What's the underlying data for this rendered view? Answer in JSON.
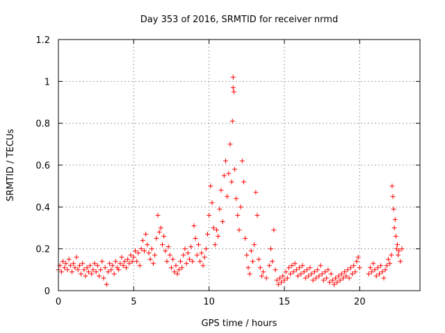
{
  "chart_data": {
    "type": "scatter",
    "title": "Day 353 of 2016, SRMTID for receiver nrmd",
    "xlabel": "GPS time / hours",
    "ylabel": "SRMTID / TECUs",
    "xlim": [
      0,
      24
    ],
    "ylim": [
      0,
      1.2
    ],
    "grid": true,
    "marker": "+",
    "marker_color": "#ff0000",
    "x_ticks": [
      0,
      5,
      10,
      15,
      20
    ],
    "x_tick_labels": [
      "0",
      "5",
      "10",
      "15",
      "20"
    ],
    "y_ticks": [
      0,
      0.2,
      0.4,
      0.6,
      0.8,
      1.0,
      1.2
    ],
    "y_tick_labels": [
      "0",
      "0.2",
      "0.4",
      "0.6",
      "0.8",
      "1",
      "1.2"
    ],
    "series": [
      {
        "name": "SRMTID",
        "points": [
          [
            0.0,
            0.1
          ],
          [
            0.1,
            0.12
          ],
          [
            0.2,
            0.09
          ],
          [
            0.3,
            0.14
          ],
          [
            0.4,
            0.11
          ],
          [
            0.5,
            0.13
          ],
          [
            0.6,
            0.1
          ],
          [
            0.7,
            0.15
          ],
          [
            0.8,
            0.12
          ],
          [
            0.9,
            0.09
          ],
          [
            1.0,
            0.13
          ],
          [
            1.1,
            0.11
          ],
          [
            1.2,
            0.16
          ],
          [
            1.3,
            0.1
          ],
          [
            1.4,
            0.12
          ],
          [
            1.5,
            0.08
          ],
          [
            1.6,
            0.13
          ],
          [
            1.7,
            0.1
          ],
          [
            1.8,
            0.07
          ],
          [
            1.9,
            0.11
          ],
          [
            2.0,
            0.09
          ],
          [
            2.1,
            0.12
          ],
          [
            2.2,
            0.08
          ],
          [
            2.3,
            0.1
          ],
          [
            2.4,
            0.13
          ],
          [
            2.5,
            0.09
          ],
          [
            2.6,
            0.12
          ],
          [
            2.7,
            0.07
          ],
          [
            2.8,
            0.1
          ],
          [
            2.9,
            0.14
          ],
          [
            3.0,
            0.06
          ],
          [
            3.1,
            0.11
          ],
          [
            3.2,
            0.03
          ],
          [
            3.3,
            0.09
          ],
          [
            3.4,
            0.13
          ],
          [
            3.5,
            0.1
          ],
          [
            3.6,
            0.12
          ],
          [
            3.7,
            0.08
          ],
          [
            3.8,
            0.14
          ],
          [
            3.9,
            0.11
          ],
          [
            4.0,
            0.1
          ],
          [
            4.1,
            0.13
          ],
          [
            4.2,
            0.16
          ],
          [
            4.3,
            0.12
          ],
          [
            4.4,
            0.14
          ],
          [
            4.5,
            0.11
          ],
          [
            4.6,
            0.15
          ],
          [
            4.7,
            0.13
          ],
          [
            4.8,
            0.17
          ],
          [
            4.9,
            0.14
          ],
          [
            5.0,
            0.16
          ],
          [
            5.1,
            0.19
          ],
          [
            5.2,
            0.14
          ],
          [
            5.3,
            0.18
          ],
          [
            5.4,
            0.12
          ],
          [
            5.5,
            0.2
          ],
          [
            5.6,
            0.24
          ],
          [
            5.7,
            0.19
          ],
          [
            5.8,
            0.27
          ],
          [
            5.9,
            0.22
          ],
          [
            6.0,
            0.18
          ],
          [
            6.1,
            0.15
          ],
          [
            6.2,
            0.2
          ],
          [
            6.3,
            0.13
          ],
          [
            6.4,
            0.17
          ],
          [
            6.5,
            0.25
          ],
          [
            6.6,
            0.36
          ],
          [
            6.7,
            0.28
          ],
          [
            6.8,
            0.3
          ],
          [
            6.9,
            0.22
          ],
          [
            7.0,
            0.26
          ],
          [
            7.1,
            0.19
          ],
          [
            7.2,
            0.14
          ],
          [
            7.3,
            0.21
          ],
          [
            7.4,
            0.17
          ],
          [
            7.5,
            0.11
          ],
          [
            7.6,
            0.15
          ],
          [
            7.7,
            0.09
          ],
          [
            7.8,
            0.12
          ],
          [
            7.9,
            0.08
          ],
          [
            8.0,
            0.1
          ],
          [
            8.1,
            0.14
          ],
          [
            8.2,
            0.11
          ],
          [
            8.3,
            0.17
          ],
          [
            8.4,
            0.2
          ],
          [
            8.5,
            0.13
          ],
          [
            8.6,
            0.18
          ],
          [
            8.7,
            0.15
          ],
          [
            8.8,
            0.21
          ],
          [
            8.9,
            0.14
          ],
          [
            9.0,
            0.31
          ],
          [
            9.1,
            0.25
          ],
          [
            9.2,
            0.17
          ],
          [
            9.3,
            0.22
          ],
          [
            9.4,
            0.14
          ],
          [
            9.5,
            0.18
          ],
          [
            9.6,
            0.12
          ],
          [
            9.7,
            0.16
          ],
          [
            9.8,
            0.2
          ],
          [
            9.9,
            0.27
          ],
          [
            10.0,
            0.36
          ],
          [
            10.1,
            0.5
          ],
          [
            10.2,
            0.42
          ],
          [
            10.3,
            0.3
          ],
          [
            10.4,
            0.22
          ],
          [
            10.5,
            0.29
          ],
          [
            10.6,
            0.26
          ],
          [
            10.7,
            0.39
          ],
          [
            10.8,
            0.48
          ],
          [
            10.9,
            0.33
          ],
          [
            11.0,
            0.55
          ],
          [
            11.1,
            0.62
          ],
          [
            11.2,
            0.45
          ],
          [
            11.3,
            0.56
          ],
          [
            11.4,
            0.7
          ],
          [
            11.5,
            0.52
          ],
          [
            11.55,
            0.81
          ],
          [
            11.6,
            0.97
          ],
          [
            11.6,
            1.02
          ],
          [
            11.65,
            0.95
          ],
          [
            11.7,
            0.58
          ],
          [
            11.8,
            0.44
          ],
          [
            11.9,
            0.36
          ],
          [
            12.0,
            0.29
          ],
          [
            12.1,
            0.4
          ],
          [
            12.2,
            0.62
          ],
          [
            12.3,
            0.52
          ],
          [
            12.4,
            0.25
          ],
          [
            12.5,
            0.17
          ],
          [
            12.6,
            0.11
          ],
          [
            12.7,
            0.08
          ],
          [
            12.8,
            0.19
          ],
          [
            12.9,
            0.14
          ],
          [
            13.0,
            0.22
          ],
          [
            13.1,
            0.47
          ],
          [
            13.2,
            0.36
          ],
          [
            13.3,
            0.15
          ],
          [
            13.4,
            0.11
          ],
          [
            13.5,
            0.07
          ],
          [
            13.6,
            0.09
          ],
          [
            13.8,
            0.06
          ],
          [
            14.0,
            0.12
          ],
          [
            14.1,
            0.2
          ],
          [
            14.2,
            0.14
          ],
          [
            14.3,
            0.29
          ],
          [
            14.4,
            0.1
          ],
          [
            14.5,
            0.05
          ],
          [
            14.6,
            0.03
          ],
          [
            14.7,
            0.06
          ],
          [
            14.8,
            0.04
          ],
          [
            14.9,
            0.07
          ],
          [
            15.0,
            0.05
          ],
          [
            15.1,
            0.09
          ],
          [
            15.2,
            0.06
          ],
          [
            15.3,
            0.11
          ],
          [
            15.4,
            0.08
          ],
          [
            15.5,
            0.12
          ],
          [
            15.6,
            0.09
          ],
          [
            15.7,
            0.13
          ],
          [
            15.8,
            0.1
          ],
          [
            15.9,
            0.07
          ],
          [
            16.0,
            0.11
          ],
          [
            16.1,
            0.08
          ],
          [
            16.2,
            0.12
          ],
          [
            16.3,
            0.09
          ],
          [
            16.4,
            0.06
          ],
          [
            16.5,
            0.1
          ],
          [
            16.6,
            0.07
          ],
          [
            16.7,
            0.11
          ],
          [
            16.8,
            0.08
          ],
          [
            16.9,
            0.05
          ],
          [
            17.0,
            0.09
          ],
          [
            17.1,
            0.06
          ],
          [
            17.2,
            0.1
          ],
          [
            17.3,
            0.07
          ],
          [
            17.4,
            0.12
          ],
          [
            17.5,
            0.08
          ],
          [
            17.6,
            0.05
          ],
          [
            17.7,
            0.09
          ],
          [
            17.8,
            0.06
          ],
          [
            17.9,
            0.1
          ],
          [
            18.0,
            0.04
          ],
          [
            18.1,
            0.08
          ],
          [
            18.2,
            0.05
          ],
          [
            18.3,
            0.03
          ],
          [
            18.4,
            0.06
          ],
          [
            18.5,
            0.04
          ],
          [
            18.6,
            0.07
          ],
          [
            18.7,
            0.05
          ],
          [
            18.8,
            0.08
          ],
          [
            18.9,
            0.06
          ],
          [
            19.0,
            0.09
          ],
          [
            19.1,
            0.07
          ],
          [
            19.2,
            0.1
          ],
          [
            19.3,
            0.06
          ],
          [
            19.4,
            0.11
          ],
          [
            19.5,
            0.08
          ],
          [
            19.6,
            0.12
          ],
          [
            19.7,
            0.09
          ],
          [
            19.8,
            0.14
          ],
          [
            19.9,
            0.16
          ],
          [
            20.0,
            0.11
          ],
          [
            20.6,
            0.08
          ],
          [
            20.7,
            0.11
          ],
          [
            20.8,
            0.09
          ],
          [
            20.9,
            0.13
          ],
          [
            21.0,
            0.1
          ],
          [
            21.1,
            0.07
          ],
          [
            21.2,
            0.11
          ],
          [
            21.3,
            0.08
          ],
          [
            21.4,
            0.12
          ],
          [
            21.5,
            0.09
          ],
          [
            21.6,
            0.06
          ],
          [
            21.7,
            0.1
          ],
          [
            21.8,
            0.12
          ],
          [
            21.9,
            0.15
          ],
          [
            22.0,
            0.13
          ],
          [
            22.1,
            0.17
          ],
          [
            22.15,
            0.5
          ],
          [
            22.2,
            0.45
          ],
          [
            22.25,
            0.39
          ],
          [
            22.3,
            0.3
          ],
          [
            22.35,
            0.34
          ],
          [
            22.4,
            0.26
          ],
          [
            22.45,
            0.2
          ],
          [
            22.5,
            0.22
          ],
          [
            22.55,
            0.17
          ],
          [
            22.6,
            0.19
          ],
          [
            22.7,
            0.14
          ],
          [
            22.8,
            0.2
          ]
        ]
      }
    ]
  }
}
